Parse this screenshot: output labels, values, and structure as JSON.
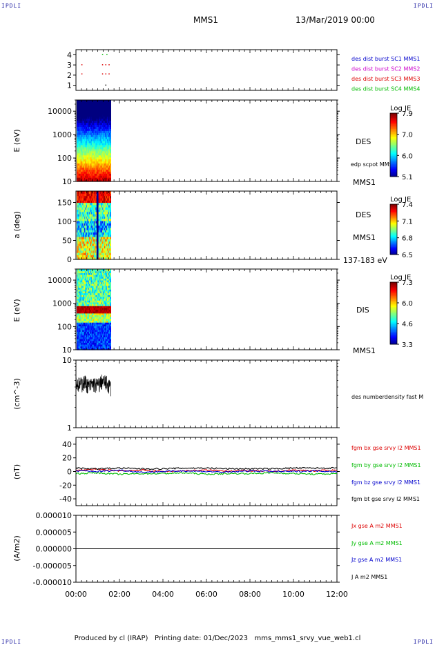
{
  "header": {
    "corner_label": "IPDLI",
    "title": "MMS1",
    "date": "13/Mar/2019 00:00"
  },
  "footer": {
    "produced": "Produced by cl (IRAP)",
    "printing": "Printing date: 01/Dec/2023",
    "file": "mms_mms1_srvy_vue_web1.cl"
  },
  "time_axis": {
    "range_hours": [
      0,
      12
    ],
    "tick_labels": [
      "00:00",
      "02:00",
      "04:00",
      "06:00",
      "08:00",
      "10:00",
      "12:00"
    ]
  },
  "colors": {
    "mms1": "#0000cc",
    "mms2": "#cc00cc",
    "mms3": "#dd0000",
    "mms4": "#00bb00",
    "bx": "#dd0000",
    "by": "#00bb00",
    "bz": "#0000cc",
    "bt": "#000000"
  },
  "chart_data": [
    {
      "type": "scatter",
      "panel": "availability",
      "yticks": [
        "4",
        "3",
        "2",
        "1"
      ],
      "ylim": [
        0.5,
        4.5
      ],
      "legend": [
        {
          "name": "des dist burst SC1 MMS1",
          "color": "#0000cc"
        },
        {
          "name": "des dist burst SC2 MMS2",
          "color": "#cc00cc"
        },
        {
          "name": "des dist burst SC3 MMS3",
          "color": "#dd0000"
        },
        {
          "name": "des dist burst SC4 MMS4",
          "color": "#00bb00"
        }
      ],
      "points": [
        {
          "t": 0.25,
          "y": 3.0,
          "color": "#dd0000"
        },
        {
          "t": 0.25,
          "y": 2.1,
          "color": "#dd0000"
        },
        {
          "t": 1.2,
          "y": 4.0,
          "color": "#00bb00"
        },
        {
          "t": 1.4,
          "y": 4.0,
          "color": "#00bb00"
        },
        {
          "t": 1.2,
          "y": 3.0,
          "color": "#dd0000"
        },
        {
          "t": 1.35,
          "y": 3.0,
          "color": "#dd0000"
        },
        {
          "t": 1.5,
          "y": 3.0,
          "color": "#dd0000"
        },
        {
          "t": 1.2,
          "y": 2.1,
          "color": "#dd0000"
        },
        {
          "t": 1.35,
          "y": 2.1,
          "color": "#dd0000"
        },
        {
          "t": 1.5,
          "y": 2.1,
          "color": "#dd0000"
        },
        {
          "t": 1.35,
          "y": 1.0,
          "color": "#000000"
        }
      ]
    },
    {
      "type": "heatmap",
      "panel": "des-energy",
      "ylabel": "E (eV)",
      "yscale": "log",
      "ylim": [
        10,
        30000
      ],
      "yticks": [
        "10000",
        "1000",
        "100",
        "10"
      ],
      "xrange_hours": [
        0.0,
        1.6
      ],
      "right_labels": [
        "DES",
        "edp scpot MMS1",
        "MMS1"
      ],
      "colorbar": {
        "label": "Log JE",
        "ticks": [
          "7.9",
          "7.0",
          "6.0",
          "5.1"
        ]
      }
    },
    {
      "type": "heatmap",
      "panel": "des-pitch",
      "ylabel": "a (deg)",
      "ylim": [
        0,
        180
      ],
      "yticks": [
        "150",
        "100",
        "50",
        "0"
      ],
      "xrange_hours": [
        0.0,
        1.6
      ],
      "right_labels": [
        "DES",
        "MMS1",
        "137-183 eV"
      ],
      "colorbar": {
        "label": "Log JE",
        "ticks": [
          "7.4",
          "7.1",
          "6.8",
          "6.5"
        ]
      }
    },
    {
      "type": "heatmap",
      "panel": "dis-energy",
      "ylabel": "E (eV)",
      "yscale": "log",
      "ylim": [
        10,
        30000
      ],
      "yticks": [
        "10000",
        "1000",
        "100",
        "10"
      ],
      "xrange_hours": [
        0.0,
        1.6
      ],
      "right_labels": [
        "DIS",
        "MMS1"
      ],
      "colorbar": {
        "label": "Log JE",
        "ticks": [
          "7.3",
          "6.0",
          "4.6",
          "3.3"
        ]
      }
    },
    {
      "type": "line",
      "panel": "density",
      "ylabel": "(cm^-3)",
      "yscale": "log",
      "ylim": [
        1,
        10
      ],
      "yticks": [
        "10",
        "1"
      ],
      "series": [
        {
          "name": "des numberdensity fast M",
          "color": "#000000",
          "t": [
            0.0,
            0.2,
            0.4,
            0.6,
            0.8,
            1.0,
            1.2,
            1.4,
            1.6
          ],
          "values": [
            4.6,
            4.3,
            4.8,
            4.1,
            4.5,
            4.2,
            4.9,
            4.6,
            4.0
          ]
        }
      ]
    },
    {
      "type": "line",
      "panel": "magnetic-field",
      "ylabel": "(nT)",
      "ylim": [
        -50,
        50
      ],
      "yticks": [
        "40",
        "20",
        "0",
        "-20",
        "-40"
      ],
      "series": [
        {
          "name": "fgm bx gse srvy l2 MMS1",
          "color": "#dd0000",
          "t": [
            0,
            1,
            2,
            3,
            4,
            5,
            6,
            7,
            8,
            9,
            10,
            11,
            12
          ],
          "values": [
            2,
            3,
            1,
            2,
            0,
            1,
            2,
            1,
            1,
            0,
            2,
            1,
            2
          ]
        },
        {
          "name": "fgm by gse srvy l2 MMS1",
          "color": "#00bb00",
          "t": [
            0,
            1,
            2,
            3,
            4,
            5,
            6,
            7,
            8,
            9,
            10,
            11,
            12
          ],
          "values": [
            -3,
            -2,
            -4,
            -3,
            -3,
            -2,
            -4,
            -3,
            -3,
            -2,
            -3,
            -4,
            -3
          ]
        },
        {
          "name": "fgm bz gse srvy l2 MMS1",
          "color": "#0000cc",
          "t": [
            0,
            1,
            2,
            3,
            4,
            5,
            6,
            7,
            8,
            9,
            10,
            11,
            12
          ],
          "values": [
            1,
            0,
            2,
            -1,
            0,
            1,
            0,
            -1,
            1,
            0,
            0,
            1,
            0
          ]
        },
        {
          "name": "fgm bt gse srvy l2 MMS1",
          "color": "#000000",
          "t": [
            0,
            1,
            2,
            3,
            4,
            5,
            6,
            7,
            8,
            9,
            10,
            11,
            12
          ],
          "values": [
            5,
            4,
            5,
            4,
            4,
            5,
            5,
            4,
            4,
            4,
            5,
            5,
            5
          ]
        }
      ]
    },
    {
      "type": "line",
      "panel": "current-density",
      "ylabel": "(A/m2)",
      "ylim": [
        -1e-05,
        1e-05
      ],
      "yticks": [
        "0.000010",
        "0.000005",
        "0.000000",
        "-0.000005",
        "-0.000010"
      ],
      "series": [
        {
          "name": "Jx gse A m2 MMS1",
          "color": "#dd0000",
          "t": [
            0,
            12
          ],
          "values": [
            0,
            0
          ]
        },
        {
          "name": "Jy gse A m2 MMS1",
          "color": "#00bb00",
          "t": [
            0,
            12
          ],
          "values": [
            0,
            0
          ]
        },
        {
          "name": "Jz gse A m2 MMS1",
          "color": "#0000cc",
          "t": [
            0,
            12
          ],
          "values": [
            0,
            0
          ]
        },
        {
          "name": "J A m2 MMS1",
          "color": "#000000",
          "t": [
            0,
            12
          ],
          "values": [
            0,
            0
          ]
        }
      ]
    }
  ]
}
